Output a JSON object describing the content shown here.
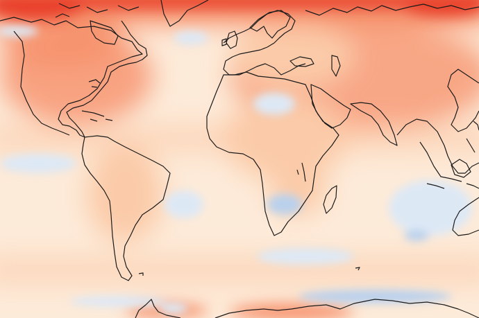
{
  "map": {
    "projection": "plate-carree",
    "palette": {
      "strong_warm": "#e8402a",
      "warm": "#f6906a",
      "mild_warm": "#fbcaa8",
      "neutral": "#fdebd9",
      "mild_cool": "#dde8f5",
      "cool": "#b9d0ec",
      "coastline": "#1a1a1a"
    },
    "layers": [
      "temperature-anomaly-field",
      "coastlines"
    ]
  }
}
